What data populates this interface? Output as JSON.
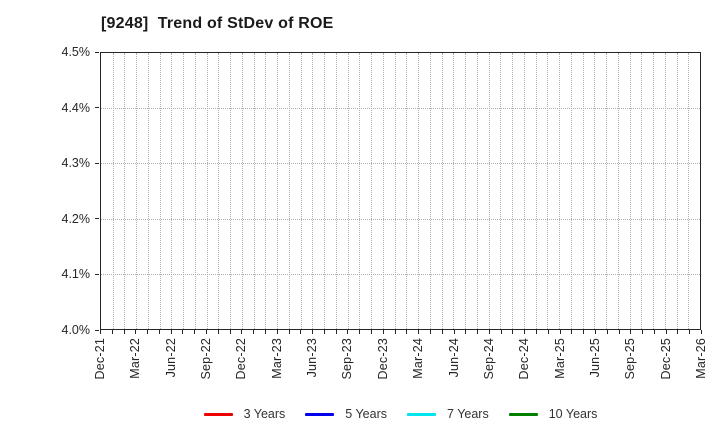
{
  "chart_data": {
    "type": "line",
    "title": "[9248]  Trend of StDev of ROE",
    "x_tick_labels": [
      "Dec-21",
      "Mar-22",
      "Jun-22",
      "Sep-22",
      "Dec-22",
      "Mar-23",
      "Jun-23",
      "Sep-23",
      "Dec-23",
      "Mar-24",
      "Jun-24",
      "Sep-24",
      "Dec-24",
      "Mar-25",
      "Jun-25",
      "Sep-25",
      "Dec-25",
      "Mar-26"
    ],
    "x_label_every_months": 3,
    "x_total_intervals_months": 51,
    "ylim": [
      4.0,
      4.5
    ],
    "y_ticks": [
      4.5,
      4.4,
      4.3,
      4.2,
      4.1,
      4.0
    ],
    "y_tick_labels": [
      "4.5%",
      "4.4%",
      "4.3%",
      "4.2%",
      "4.1%",
      "4.0%"
    ],
    "grid": {
      "on": true,
      "style": "dotted",
      "color": "#b0b0b0",
      "vertical_interval": "monthly",
      "horizontal_interval": 0.1
    },
    "legend_position": "bottom-center",
    "series": [
      {
        "name": "3 Years",
        "color": "#ee0000",
        "values": []
      },
      {
        "name": "5 Years",
        "color": "#0000ee",
        "values": []
      },
      {
        "name": "7 Years",
        "color": "#00e5ee",
        "values": []
      },
      {
        "name": "10 Years",
        "color": "#008000",
        "values": []
      }
    ]
  },
  "colors": {
    "background": "#ffffff",
    "axis_border": "#262626",
    "grid": "#b0b0b0",
    "tick_text": "#262626",
    "title_text": "#1a1a1a",
    "legend_text": "#333333"
  }
}
